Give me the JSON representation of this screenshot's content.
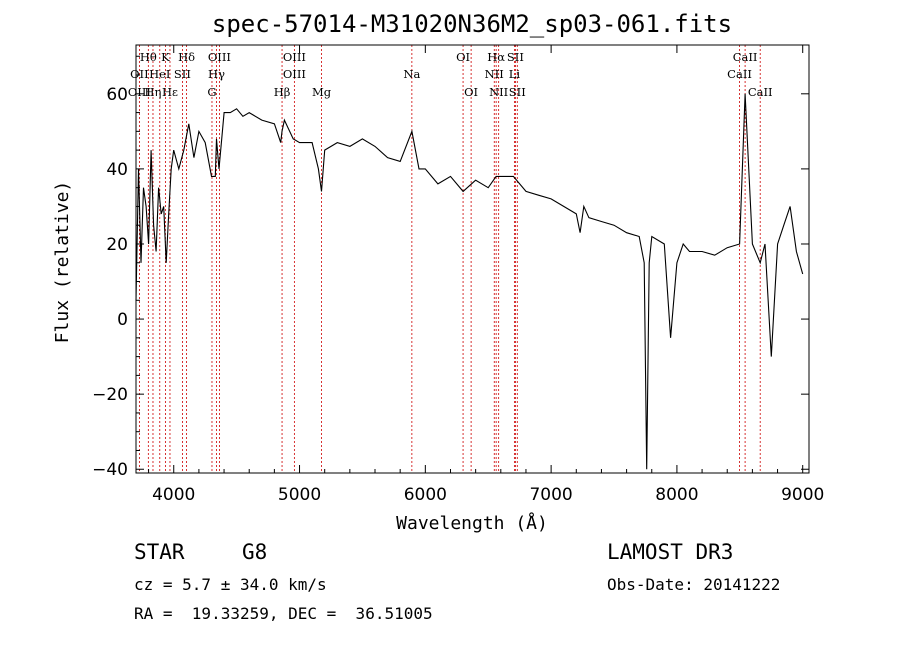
{
  "chart_data": {
    "type": "line",
    "title": "spec-57014-M31020N36M2_sp03-061.fits",
    "xlabel": "Wavelength (Å)",
    "ylabel": "Flux (relative)",
    "xlim": [
      3700,
      9050
    ],
    "ylim": [
      -41,
      73
    ],
    "xticks": [
      4000,
      5000,
      6000,
      7000,
      8000,
      9000
    ],
    "yticks": [
      -40,
      -20,
      0,
      20,
      40,
      60
    ],
    "ytick_labels": [
      "−40",
      "−20",
      "0",
      "20",
      "40",
      "60"
    ],
    "spectrum_color": "#000000",
    "line_marker_color": "#cc0000",
    "series": [
      {
        "name": "flux",
        "x": [
          3700,
          3720,
          3740,
          3760,
          3780,
          3800,
          3820,
          3840,
          3860,
          3880,
          3900,
          3920,
          3940,
          3960,
          3980,
          4000,
          4040,
          4080,
          4120,
          4160,
          4200,
          4250,
          4300,
          4330,
          4340,
          4360,
          4400,
          4450,
          4500,
          4550,
          4600,
          4700,
          4800,
          4850,
          4861,
          4880,
          4950,
          5000,
          5100,
          5150,
          5175,
          5200,
          5300,
          5400,
          5500,
          5600,
          5700,
          5800,
          5893,
          5950,
          6000,
          6100,
          6200,
          6300,
          6400,
          6500,
          6563,
          6600,
          6700,
          6800,
          6900,
          7000,
          7100,
          7200,
          7230,
          7260,
          7300,
          7400,
          7500,
          7600,
          7700,
          7740,
          7760,
          7780,
          7800,
          7900,
          7950,
          8000,
          8050,
          8100,
          8200,
          8300,
          8400,
          8498,
          8542,
          8600,
          8662,
          8700,
          8750,
          8800,
          8850,
          8900,
          8950,
          9000
        ],
        "y": [
          5,
          40,
          15,
          35,
          30,
          20,
          45,
          25,
          18,
          35,
          28,
          30,
          15,
          28,
          40,
          45,
          40,
          45,
          52,
          43,
          50,
          47,
          38,
          38,
          48,
          40,
          55,
          55,
          56,
          54,
          55,
          53,
          52,
          47,
          50,
          53,
          48,
          47,
          47,
          40,
          34,
          45,
          47,
          46,
          48,
          46,
          43,
          42,
          50,
          40,
          40,
          36,
          38,
          34,
          37,
          35,
          38,
          38,
          38,
          34,
          33,
          32,
          30,
          28,
          23,
          30,
          27,
          26,
          25,
          23,
          22,
          15,
          -40,
          15,
          22,
          20,
          -5,
          15,
          20,
          18,
          18,
          17,
          19,
          20,
          60,
          20,
          15,
          20,
          -10,
          20,
          25,
          30,
          18,
          12
        ]
      }
    ],
    "spectral_lines": [
      {
        "name": "Hθ",
        "wave": 3798,
        "row": 0
      },
      {
        "name": "OII",
        "wave": 3727,
        "row": 1
      },
      {
        "name": "OIII",
        "wave": 3727,
        "row": 2
      },
      {
        "name": "K",
        "wave": 3934,
        "row": 0
      },
      {
        "name": "HeI",
        "wave": 3889,
        "row": 1
      },
      {
        "name": "Hη",
        "wave": 3835,
        "row": 2
      },
      {
        "name": "Hε",
        "wave": 3970,
        "row": 2
      },
      {
        "name": "SII",
        "wave": 4069,
        "row": 1
      },
      {
        "name": "Hδ",
        "wave": 4102,
        "row": 0
      },
      {
        "name": "OIII",
        "wave": 4363,
        "row": 0
      },
      {
        "name": "Hγ",
        "wave": 4340,
        "row": 1
      },
      {
        "name": "G",
        "wave": 4304,
        "row": 2
      },
      {
        "name": "OIII",
        "wave": 4959,
        "row": 0
      },
      {
        "name": "OIII",
        "wave": 4959,
        "row": 1
      },
      {
        "name": "Hβ",
        "wave": 4861,
        "row": 2
      },
      {
        "name": "Mg",
        "wave": 5175,
        "row": 2
      },
      {
        "name": "Na",
        "wave": 5893,
        "row": 1
      },
      {
        "name": "OI",
        "wave": 6300,
        "row": 0
      },
      {
        "name": "OI",
        "wave": 6364,
        "row": 2
      },
      {
        "name": "Hα",
        "wave": 6563,
        "row": 0
      },
      {
        "name": "SII",
        "wave": 6716,
        "row": 0
      },
      {
        "name": "NII",
        "wave": 6548,
        "row": 1
      },
      {
        "name": "Li",
        "wave": 6708,
        "row": 1
      },
      {
        "name": "NII",
        "wave": 6583,
        "row": 2
      },
      {
        "name": "SII",
        "wave": 6731,
        "row": 2
      },
      {
        "name": "CaII",
        "wave": 8542,
        "row": 0
      },
      {
        "name": "CaII",
        "wave": 8498,
        "row": 1
      },
      {
        "name": "CaII",
        "wave": 8662,
        "row": 2
      }
    ]
  },
  "info": {
    "class": "STAR",
    "subclass": "G8",
    "survey": "LAMOST DR3",
    "cz": "cz = 5.7 ± 34.0 km/s",
    "obs_date": "Obs-Date: 20141222",
    "coords": "RA =  19.33259, DEC =  36.51005"
  }
}
